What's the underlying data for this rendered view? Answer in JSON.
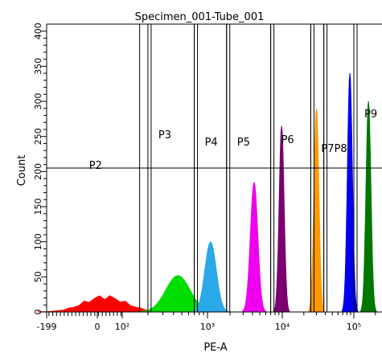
{
  "chart_data": {
    "type": "histogram",
    "title": "Specimen_001-Tube_001",
    "xlabel": "PE-A",
    "ylabel": "Count",
    "x_scale": "biexponential",
    "ylim": [
      0,
      410
    ],
    "y_ticks": [
      0,
      50,
      100,
      150,
      200,
      250,
      300,
      350,
      400
    ],
    "x_tick_labels": [
      {
        "label": "-199",
        "value": -199
      },
      {
        "label": "0",
        "value": 0
      },
      {
        "label": "10²",
        "value": 100
      },
      {
        "label": "10³",
        "value": 1000
      },
      {
        "label": "10⁴",
        "value": 10000
      },
      {
        "label": "10⁵",
        "value": 100000
      }
    ],
    "gate_level": 205,
    "gates": [
      {
        "name": "P2",
        "range": [
          -199,
          160
        ]
      },
      {
        "name": "P3",
        "range": [
          200,
          700
        ]
      },
      {
        "name": "P4",
        "range": [
          700,
          1800
        ]
      },
      {
        "name": "P5",
        "range": [
          1800,
          7000
        ]
      },
      {
        "name": "P6",
        "range": [
          7000,
          25000
        ]
      },
      {
        "name": "P7",
        "range": [
          25000,
          38000
        ]
      },
      {
        "name": "P8",
        "range": [
          38000,
          100000
        ]
      },
      {
        "name": "P9",
        "range": [
          100000,
          200000
        ]
      }
    ],
    "series": [
      {
        "color": "#ff0000",
        "peak_x": 30,
        "peak_count": 25
      },
      {
        "color": "#00dd00",
        "peak_x": 450,
        "peak_count": 52
      },
      {
        "color": "#2aa8e8",
        "peak_x": 1100,
        "peak_count": 100
      },
      {
        "color": "#ee00ee",
        "peak_x": 4200,
        "peak_count": 185
      },
      {
        "color": "#7a0070",
        "peak_x": 9800,
        "peak_count": 265
      },
      {
        "color": "#ff9900",
        "peak_x": 30000,
        "peak_count": 290
      },
      {
        "color": "#0000ee",
        "peak_x": 88000,
        "peak_count": 340
      },
      {
        "color": "#007700",
        "peak_x": 160000,
        "peak_count": 300
      }
    ]
  }
}
